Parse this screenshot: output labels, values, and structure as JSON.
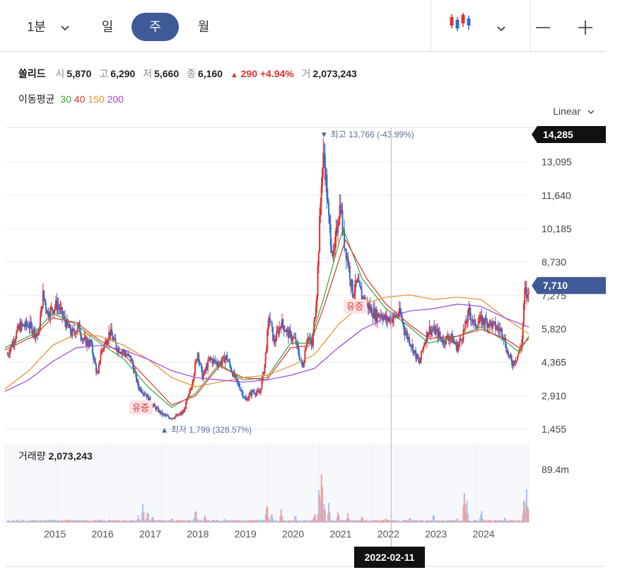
{
  "toolbar": {
    "interval_label": "1분",
    "tabs": [
      "일",
      "주",
      "월"
    ],
    "active_tab": "주",
    "zoom_out_label": "—",
    "zoom_in_label": "+"
  },
  "quote": {
    "name": "쏠리드",
    "open_label": "시",
    "open": "5,870",
    "high_label": "고",
    "high": "6,290",
    "low_label": "저",
    "low": "5,660",
    "close_label": "종",
    "close": "6,160",
    "change_arrow": "▲",
    "change": "290",
    "change_pct": "+4.94%",
    "volume_label": "거",
    "volume": "2,073,243"
  },
  "moving_average": {
    "label": "이동평균",
    "periods": [
      {
        "value": "30",
        "color": "#3aa43a"
      },
      {
        "value": "40",
        "color": "#e0322f"
      },
      {
        "value": "150",
        "color": "#e8902a"
      },
      {
        "value": "200",
        "color": "#a044e0"
      }
    ]
  },
  "scale_selector": "Linear",
  "volume_panel": {
    "label": "거래량",
    "value": "2,073,243",
    "axis_max_label": "89.4m"
  },
  "crosshair_date": "2022-02-11",
  "colors": {
    "up": "#e0322f",
    "down": "#2e6fd6",
    "accent": "#3f5a96"
  },
  "chart_data": {
    "type": "candlestick",
    "interval": "weekly",
    "y_ticks": [
      "13,095",
      "11,640",
      "10,185",
      "8,730",
      "7,275",
      "5,820",
      "4,365",
      "2,910",
      "1,455"
    ],
    "y_tick_values": [
      13095,
      11640,
      10185,
      8730,
      7275,
      5820,
      4365,
      2910,
      1455
    ],
    "ylim": [
      1455,
      14285
    ],
    "x_ticks": [
      "2015",
      "2016",
      "2017",
      "2018",
      "2019",
      "2020",
      "2021",
      "2022",
      "2023",
      "2024"
    ],
    "xlim": [
      2014.0,
      2025.0
    ],
    "top_label": "14,285",
    "current_price_label": "7,710",
    "current_price": 7710,
    "annotations": {
      "high": {
        "text": "최고",
        "value": "13,766",
        "pct": "(-43.99%)",
        "x": 2020.7,
        "y": 13766
      },
      "low": {
        "text": "최저",
        "value": "1,799",
        "pct": "(328.57%)",
        "x": 2017.35,
        "y": 1799
      },
      "rights_issue": [
        {
          "text": "유증",
          "x": 2016.85,
          "y": 2400
        },
        {
          "text": "유증",
          "x": 2021.35,
          "y": 6800
        }
      ]
    },
    "close_path": [
      [
        2014.05,
        4700
      ],
      [
        2014.3,
        5900
      ],
      [
        2014.5,
        6000
      ],
      [
        2014.7,
        5500
      ],
      [
        2014.8,
        7300
      ],
      [
        2014.9,
        6500
      ],
      [
        2015.1,
        6900
      ],
      [
        2015.25,
        6200
      ],
      [
        2015.4,
        5600
      ],
      [
        2015.55,
        5900
      ],
      [
        2015.65,
        5300
      ],
      [
        2015.8,
        5200
      ],
      [
        2015.95,
        3700
      ],
      [
        2016.0,
        4700
      ],
      [
        2016.2,
        5700
      ],
      [
        2016.35,
        5000
      ],
      [
        2016.5,
        4800
      ],
      [
        2016.65,
        4500
      ],
      [
        2016.8,
        3300
      ],
      [
        2016.95,
        3000
      ],
      [
        2017.1,
        2500
      ],
      [
        2017.3,
        2100
      ],
      [
        2017.45,
        1950
      ],
      [
        2017.6,
        2000
      ],
      [
        2017.75,
        2200
      ],
      [
        2017.9,
        3200
      ],
      [
        2018.05,
        4800
      ],
      [
        2018.15,
        3700
      ],
      [
        2018.3,
        4500
      ],
      [
        2018.5,
        4300
      ],
      [
        2018.65,
        4600
      ],
      [
        2018.8,
        3800
      ],
      [
        2018.95,
        3200
      ],
      [
        2019.05,
        2700
      ],
      [
        2019.2,
        3100
      ],
      [
        2019.35,
        3000
      ],
      [
        2019.45,
        4200
      ],
      [
        2019.55,
        6400
      ],
      [
        2019.65,
        5200
      ],
      [
        2019.8,
        6100
      ],
      [
        2019.95,
        5600
      ],
      [
        2020.1,
        5300
      ],
      [
        2020.25,
        4100
      ],
      [
        2020.35,
        5600
      ],
      [
        2020.45,
        5000
      ],
      [
        2020.55,
        7500
      ],
      [
        2020.65,
        12500
      ],
      [
        2020.7,
        13500
      ],
      [
        2020.8,
        10500
      ],
      [
        2020.9,
        8800
      ],
      [
        2021.0,
        10800
      ],
      [
        2021.05,
        11300
      ],
      [
        2021.1,
        9900
      ],
      [
        2021.2,
        8800
      ],
      [
        2021.3,
        7400
      ],
      [
        2021.4,
        7800
      ],
      [
        2021.5,
        7200
      ],
      [
        2021.6,
        6900
      ],
      [
        2021.7,
        6600
      ],
      [
        2021.8,
        6400
      ],
      [
        2021.9,
        6500
      ],
      [
        2022.0,
        6200
      ],
      [
        2022.15,
        6300
      ],
      [
        2022.3,
        6500
      ],
      [
        2022.4,
        5700
      ],
      [
        2022.5,
        5300
      ],
      [
        2022.6,
        4800
      ],
      [
        2022.7,
        4300
      ],
      [
        2022.8,
        5200
      ],
      [
        2022.9,
        5800
      ],
      [
        2023.05,
        5700
      ],
      [
        2023.2,
        5300
      ],
      [
        2023.35,
        5500
      ],
      [
        2023.5,
        5000
      ],
      [
        2023.65,
        5800
      ],
      [
        2023.75,
        6600
      ],
      [
        2023.85,
        6000
      ],
      [
        2024.0,
        6200
      ],
      [
        2024.15,
        6100
      ],
      [
        2024.3,
        5900
      ],
      [
        2024.45,
        5700
      ],
      [
        2024.55,
        4800
      ],
      [
        2024.65,
        4300
      ],
      [
        2024.75,
        4600
      ],
      [
        2024.85,
        5100
      ],
      [
        2024.92,
        7600
      ],
      [
        2024.97,
        7100
      ],
      [
        2025.0,
        7710
      ]
    ],
    "moving_averages": [
      {
        "name": "30",
        "color": "#3aa43a",
        "points": [
          [
            2014.0,
            5000
          ],
          [
            2014.6,
            5600
          ],
          [
            2015.0,
            6500
          ],
          [
            2015.5,
            6000
          ],
          [
            2016.0,
            5200
          ],
          [
            2016.5,
            4500
          ],
          [
            2017.0,
            3300
          ],
          [
            2017.5,
            2400
          ],
          [
            2018.0,
            3000
          ],
          [
            2018.5,
            4300
          ],
          [
            2019.0,
            3600
          ],
          [
            2019.5,
            3700
          ],
          [
            2020.0,
            5200
          ],
          [
            2020.4,
            5200
          ],
          [
            2020.7,
            7200
          ],
          [
            2021.1,
            10200
          ],
          [
            2021.5,
            8000
          ],
          [
            2022.0,
            6700
          ],
          [
            2022.5,
            5900
          ],
          [
            2022.9,
            5200
          ],
          [
            2023.5,
            5500
          ],
          [
            2024.0,
            5900
          ],
          [
            2024.5,
            5300
          ],
          [
            2024.8,
            4800
          ],
          [
            2025.0,
            5500
          ]
        ]
      },
      {
        "name": "40",
        "color": "#e0322f",
        "points": [
          [
            2014.0,
            4900
          ],
          [
            2014.6,
            5500
          ],
          [
            2015.0,
            6300
          ],
          [
            2015.5,
            6100
          ],
          [
            2016.0,
            5300
          ],
          [
            2016.5,
            4700
          ],
          [
            2017.0,
            3600
          ],
          [
            2017.5,
            2500
          ],
          [
            2018.0,
            2900
          ],
          [
            2018.5,
            4200
          ],
          [
            2019.0,
            3700
          ],
          [
            2019.5,
            3600
          ],
          [
            2020.0,
            5000
          ],
          [
            2020.4,
            5100
          ],
          [
            2020.7,
            6800
          ],
          [
            2021.15,
            9700
          ],
          [
            2021.6,
            8000
          ],
          [
            2022.0,
            6900
          ],
          [
            2022.5,
            6000
          ],
          [
            2022.9,
            5400
          ],
          [
            2023.5,
            5500
          ],
          [
            2024.0,
            5800
          ],
          [
            2024.5,
            5400
          ],
          [
            2024.8,
            5000
          ],
          [
            2025.0,
            5400
          ]
        ]
      },
      {
        "name": "150",
        "color": "#e8902a",
        "points": [
          [
            2014.0,
            3200
          ],
          [
            2014.5,
            4000
          ],
          [
            2015.0,
            5100
          ],
          [
            2015.5,
            5600
          ],
          [
            2016.0,
            5500
          ],
          [
            2016.5,
            5100
          ],
          [
            2017.0,
            4500
          ],
          [
            2017.5,
            3700
          ],
          [
            2018.0,
            3300
          ],
          [
            2018.5,
            3500
          ],
          [
            2019.0,
            3700
          ],
          [
            2019.5,
            3800
          ],
          [
            2020.0,
            4200
          ],
          [
            2020.5,
            4700
          ],
          [
            2021.0,
            6000
          ],
          [
            2021.5,
            6900
          ],
          [
            2022.0,
            7200
          ],
          [
            2022.5,
            7300
          ],
          [
            2023.0,
            7100
          ],
          [
            2023.5,
            7200
          ],
          [
            2024.0,
            7100
          ],
          [
            2024.5,
            6300
          ],
          [
            2025.0,
            5600
          ]
        ]
      },
      {
        "name": "200",
        "color": "#a044e0",
        "points": [
          [
            2014.0,
            3100
          ],
          [
            2014.5,
            3600
          ],
          [
            2015.0,
            4400
          ],
          [
            2015.5,
            5000
          ],
          [
            2016.0,
            5100
          ],
          [
            2016.5,
            4900
          ],
          [
            2017.0,
            4500
          ],
          [
            2017.5,
            4000
          ],
          [
            2018.0,
            3700
          ],
          [
            2018.5,
            3600
          ],
          [
            2019.0,
            3500
          ],
          [
            2019.5,
            3600
          ],
          [
            2020.0,
            3800
          ],
          [
            2020.5,
            4100
          ],
          [
            2021.0,
            5000
          ],
          [
            2021.5,
            5800
          ],
          [
            2022.0,
            6300
          ],
          [
            2022.5,
            6600
          ],
          [
            2023.0,
            6700
          ],
          [
            2023.5,
            6900
          ],
          [
            2024.0,
            6800
          ],
          [
            2024.5,
            6300
          ],
          [
            2025.0,
            5900
          ]
        ]
      }
    ],
    "volume": {
      "max_label": "89.4m",
      "ylim": [
        0,
        89400000
      ],
      "spikes": [
        [
          2015.0,
          6000000
        ],
        [
          2015.6,
          4000000
        ],
        [
          2016.2,
          5000000
        ],
        [
          2016.8,
          9000000
        ],
        [
          2016.9,
          30000000
        ],
        [
          2017.0,
          18000000
        ],
        [
          2017.1,
          12000000
        ],
        [
          2017.5,
          8000000
        ],
        [
          2018.0,
          22000000
        ],
        [
          2018.2,
          12000000
        ],
        [
          2018.6,
          6000000
        ],
        [
          2019.2,
          5000000
        ],
        [
          2019.5,
          30000000
        ],
        [
          2019.6,
          18000000
        ],
        [
          2019.8,
          22000000
        ],
        [
          2020.1,
          12000000
        ],
        [
          2020.5,
          15000000
        ],
        [
          2020.6,
          58000000
        ],
        [
          2020.65,
          80000000
        ],
        [
          2020.7,
          40000000
        ],
        [
          2020.8,
          30000000
        ],
        [
          2021.0,
          20000000
        ],
        [
          2021.2,
          14000000
        ],
        [
          2021.5,
          10000000
        ],
        [
          2022.0,
          6000000
        ],
        [
          2022.5,
          8000000
        ],
        [
          2023.0,
          12000000
        ],
        [
          2023.5,
          6000000
        ],
        [
          2023.65,
          55000000
        ],
        [
          2023.7,
          30000000
        ],
        [
          2024.0,
          20000000
        ],
        [
          2024.5,
          8000000
        ],
        [
          2024.9,
          30000000
        ],
        [
          2024.95,
          55000000
        ],
        [
          2025.0,
          30000000
        ]
      ]
    }
  }
}
